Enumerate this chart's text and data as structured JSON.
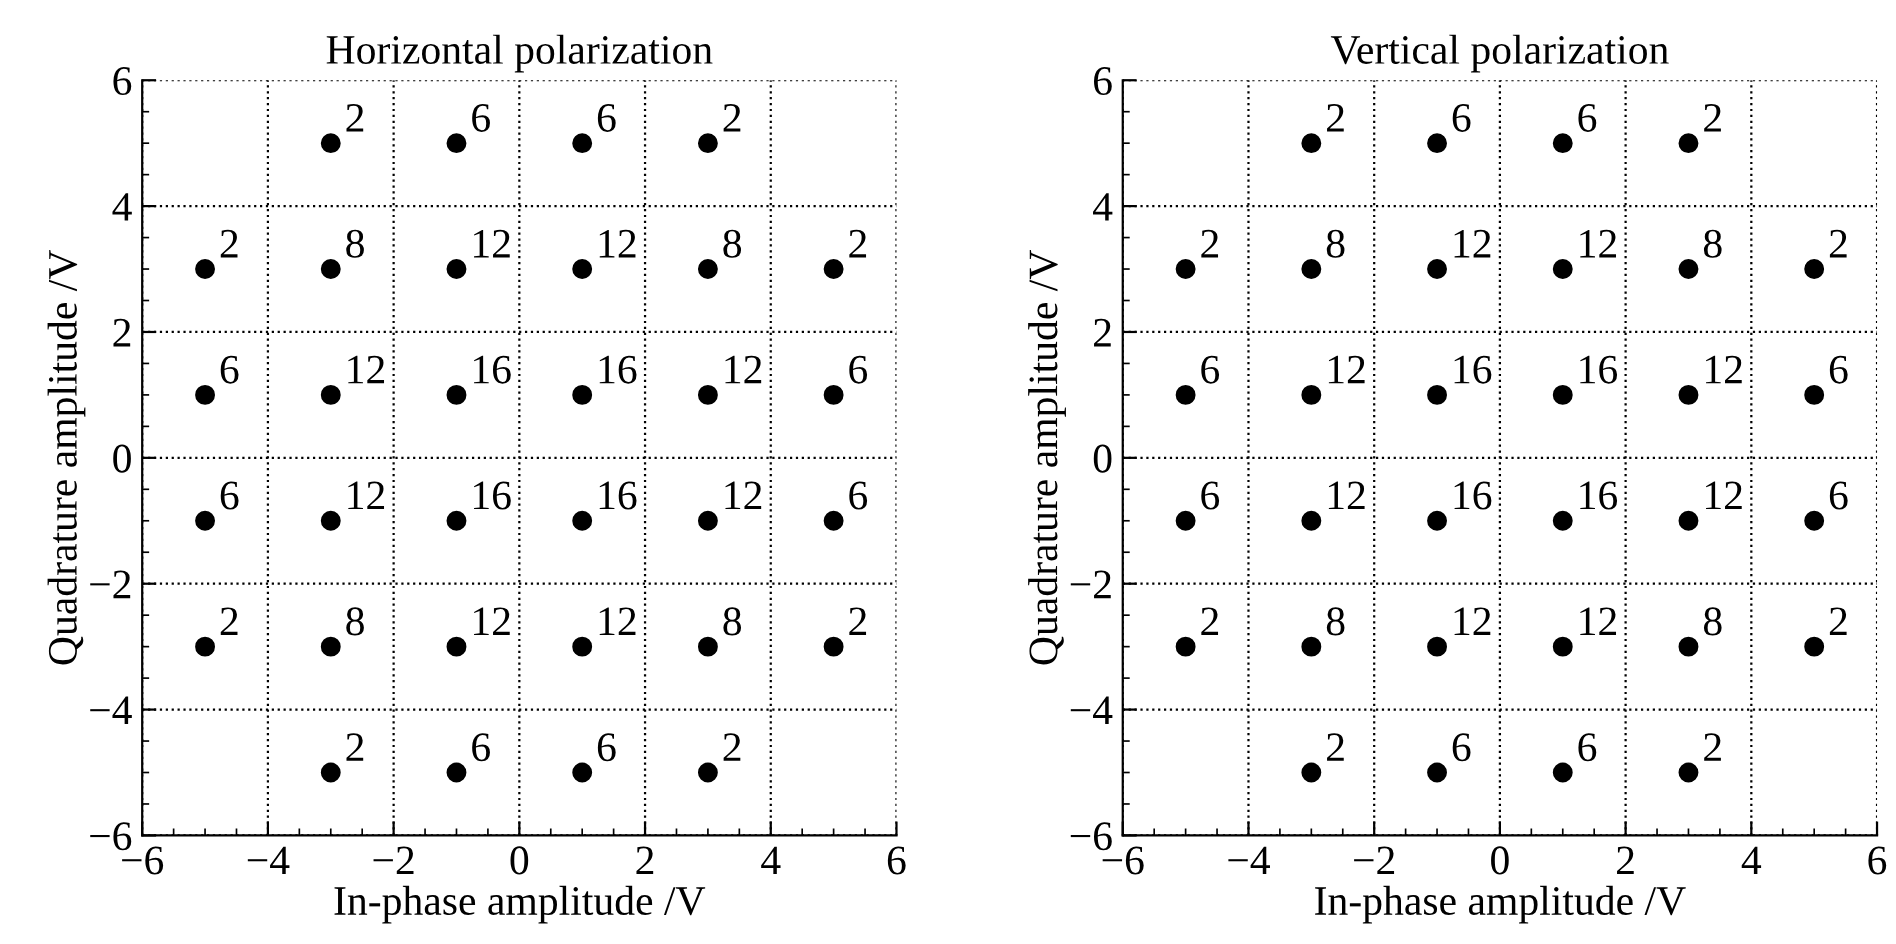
{
  "chart_data": [
    {
      "type": "scatter",
      "title": "Horizontal polarization",
      "xlabel": "In-phase amplitude /V",
      "ylabel": "Quadrature amplitude /V",
      "x": [
        -3,
        -1,
        1,
        3,
        -5,
        -3,
        -1,
        1,
        3,
        5,
        -5,
        -3,
        -1,
        1,
        3,
        5,
        -5,
        -3,
        -1,
        1,
        3,
        5,
        -5,
        -3,
        -1,
        1,
        3,
        5,
        -3,
        -1,
        1,
        3
      ],
      "values": [
        5,
        5,
        5,
        5,
        3,
        3,
        3,
        3,
        3,
        3,
        1,
        1,
        1,
        1,
        1,
        1,
        -1,
        -1,
        -1,
        -1,
        -1,
        -1,
        -3,
        -3,
        -3,
        -3,
        -3,
        -3,
        -5,
        -5,
        -5,
        -5
      ],
      "annotations": [
        {
          "text": "2",
          "x": -3,
          "y": 5
        },
        {
          "text": "6",
          "x": -1,
          "y": 5
        },
        {
          "text": "6",
          "x": 1,
          "y": 5
        },
        {
          "text": "2",
          "x": 3,
          "y": 5
        },
        {
          "text": "2",
          "x": -5,
          "y": 3
        },
        {
          "text": "8",
          "x": -3,
          "y": 3
        },
        {
          "text": "12",
          "x": -1,
          "y": 3
        },
        {
          "text": "12",
          "x": 1,
          "y": 3
        },
        {
          "text": "8",
          "x": 3,
          "y": 3
        },
        {
          "text": "2",
          "x": 5,
          "y": 3
        },
        {
          "text": "6",
          "x": -5,
          "y": 1
        },
        {
          "text": "12",
          "x": -3,
          "y": 1
        },
        {
          "text": "16",
          "x": -1,
          "y": 1
        },
        {
          "text": "16",
          "x": 1,
          "y": 1
        },
        {
          "text": "12",
          "x": 3,
          "y": 1
        },
        {
          "text": "6",
          "x": 5,
          "y": 1
        },
        {
          "text": "6",
          "x": -5,
          "y": -1
        },
        {
          "text": "12",
          "x": -3,
          "y": -1
        },
        {
          "text": "16",
          "x": -1,
          "y": -1
        },
        {
          "text": "16",
          "x": 1,
          "y": -1
        },
        {
          "text": "12",
          "x": 3,
          "y": -1
        },
        {
          "text": "6",
          "x": 5,
          "y": -1
        },
        {
          "text": "2",
          "x": -5,
          "y": -3
        },
        {
          "text": "8",
          "x": -3,
          "y": -3
        },
        {
          "text": "12",
          "x": -1,
          "y": -3
        },
        {
          "text": "12",
          "x": 1,
          "y": -3
        },
        {
          "text": "8",
          "x": 3,
          "y": -3
        },
        {
          "text": "2",
          "x": 5,
          "y": -3
        },
        {
          "text": "2",
          "x": -3,
          "y": -5
        },
        {
          "text": "6",
          "x": -1,
          "y": -5
        },
        {
          "text": "6",
          "x": 1,
          "y": -5
        },
        {
          "text": "2",
          "x": 3,
          "y": -5
        }
      ],
      "color": "#000000",
      "marker": "circle",
      "xlim": [
        -6,
        6
      ],
      "ylim": [
        -6,
        6
      ],
      "xticks": [
        {
          "value": -6,
          "label": "−6"
        },
        {
          "value": -4,
          "label": "−4"
        },
        {
          "value": -2,
          "label": "−2"
        },
        0,
        2,
        4,
        6
      ],
      "yticks": [
        {
          "value": -6,
          "label": "−6"
        },
        {
          "value": -4,
          "label": "−4"
        },
        {
          "value": -2,
          "label": "−2"
        },
        0,
        2,
        4,
        6
      ],
      "grid": true
    },
    {
      "type": "scatter",
      "title": "Vertical polarization",
      "xlabel": "In-phase amplitude /V",
      "ylabel": "Quadrature amplitude /V",
      "x": [
        -3,
        -1,
        1,
        3,
        -5,
        -3,
        -1,
        1,
        3,
        5,
        -5,
        -3,
        -1,
        1,
        3,
        5,
        -5,
        -3,
        -1,
        1,
        3,
        5,
        -5,
        -3,
        -1,
        1,
        3,
        5,
        -3,
        -1,
        1,
        3
      ],
      "values": [
        5,
        5,
        5,
        5,
        3,
        3,
        3,
        3,
        3,
        3,
        1,
        1,
        1,
        1,
        1,
        1,
        -1,
        -1,
        -1,
        -1,
        -1,
        -1,
        -3,
        -3,
        -3,
        -3,
        -3,
        -3,
        -5,
        -5,
        -5,
        -5
      ],
      "annotations": [
        {
          "text": "2",
          "x": -3,
          "y": 5
        },
        {
          "text": "6",
          "x": -1,
          "y": 5
        },
        {
          "text": "6",
          "x": 1,
          "y": 5
        },
        {
          "text": "2",
          "x": 3,
          "y": 5
        },
        {
          "text": "2",
          "x": -5,
          "y": 3
        },
        {
          "text": "8",
          "x": -3,
          "y": 3
        },
        {
          "text": "12",
          "x": -1,
          "y": 3
        },
        {
          "text": "12",
          "x": 1,
          "y": 3
        },
        {
          "text": "8",
          "x": 3,
          "y": 3
        },
        {
          "text": "2",
          "x": 5,
          "y": 3
        },
        {
          "text": "6",
          "x": -5,
          "y": 1
        },
        {
          "text": "12",
          "x": -3,
          "y": 1
        },
        {
          "text": "16",
          "x": -1,
          "y": 1
        },
        {
          "text": "16",
          "x": 1,
          "y": 1
        },
        {
          "text": "12",
          "x": 3,
          "y": 1
        },
        {
          "text": "6",
          "x": 5,
          "y": 1
        },
        {
          "text": "6",
          "x": -5,
          "y": -1
        },
        {
          "text": "12",
          "x": -3,
          "y": -1
        },
        {
          "text": "16",
          "x": -1,
          "y": -1
        },
        {
          "text": "16",
          "x": 1,
          "y": -1
        },
        {
          "text": "12",
          "x": 3,
          "y": -1
        },
        {
          "text": "6",
          "x": 5,
          "y": -1
        },
        {
          "text": "2",
          "x": -5,
          "y": -3
        },
        {
          "text": "8",
          "x": -3,
          "y": -3
        },
        {
          "text": "12",
          "x": -1,
          "y": -3
        },
        {
          "text": "12",
          "x": 1,
          "y": -3
        },
        {
          "text": "8",
          "x": 3,
          "y": -3
        },
        {
          "text": "2",
          "x": 5,
          "y": -3
        },
        {
          "text": "2",
          "x": -3,
          "y": -5
        },
        {
          "text": "6",
          "x": -1,
          "y": -5
        },
        {
          "text": "6",
          "x": 1,
          "y": -5
        },
        {
          "text": "2",
          "x": 3,
          "y": -5
        }
      ],
      "color": "#000000",
      "marker": "circle",
      "xlim": [
        -6,
        6
      ],
      "ylim": [
        -6,
        6
      ],
      "xticks": [
        {
          "value": -6,
          "label": "−6"
        },
        {
          "value": -4,
          "label": "−4"
        },
        {
          "value": -2,
          "label": "−2"
        },
        0,
        2,
        4,
        6
      ],
      "yticks": [
        {
          "value": -6,
          "label": "−6"
        },
        {
          "value": -4,
          "label": "−4"
        },
        {
          "value": -2,
          "label": "−2"
        },
        0,
        2,
        4,
        6
      ],
      "grid": true
    }
  ]
}
